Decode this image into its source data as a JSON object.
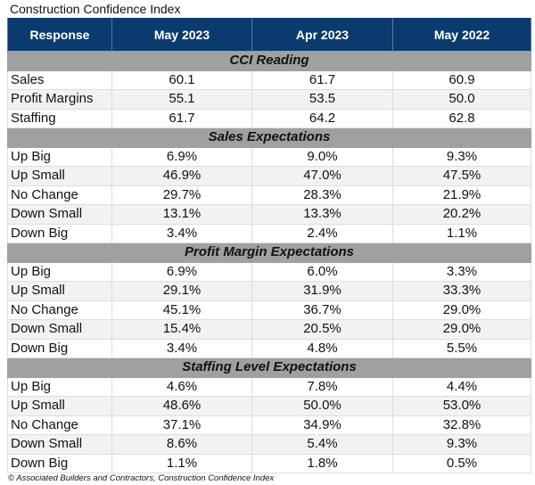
{
  "title": "Construction Confidence Index",
  "headers": [
    "Response",
    "May 2023",
    "Apr 2023",
    "May 2022"
  ],
  "colors": {
    "header_bg": "#0b3a6e",
    "section_bg": "#a0a0a0",
    "alt_row_bg": "#f2f2f2"
  },
  "sections": [
    {
      "title": "CCI Reading",
      "rows": [
        [
          "Sales",
          "60.1",
          "61.7",
          "60.9"
        ],
        [
          "Profit Margins",
          "55.1",
          "53.5",
          "50.0"
        ],
        [
          "Staffing",
          "61.7",
          "64.2",
          "62.8"
        ]
      ]
    },
    {
      "title": "Sales Expectations",
      "rows": [
        [
          "Up Big",
          "6.9%",
          "9.0%",
          "9.3%"
        ],
        [
          "Up Small",
          "46.9%",
          "47.0%",
          "47.5%"
        ],
        [
          "No Change",
          "29.7%",
          "28.3%",
          "21.9%"
        ],
        [
          "Down Small",
          "13.1%",
          "13.3%",
          "20.2%"
        ],
        [
          "Down Big",
          "3.4%",
          "2.4%",
          "1.1%"
        ]
      ]
    },
    {
      "title": "Profit Margin Expectations",
      "rows": [
        [
          "Up Big",
          "6.9%",
          "6.0%",
          "3.3%"
        ],
        [
          "Up Small",
          "29.1%",
          "31.9%",
          "33.3%"
        ],
        [
          "No Change",
          "45.1%",
          "36.7%",
          "29.0%"
        ],
        [
          "Down Small",
          "15.4%",
          "20.5%",
          "29.0%"
        ],
        [
          "Down Big",
          "3.4%",
          "4.8%",
          "5.5%"
        ]
      ]
    },
    {
      "title": "Staffing Level Expectations",
      "rows": [
        [
          "Up Big",
          "4.6%",
          "7.8%",
          "4.4%"
        ],
        [
          "Up Small",
          "48.6%",
          "50.0%",
          "53.0%"
        ],
        [
          "No Change",
          "37.1%",
          "34.9%",
          "32.8%"
        ],
        [
          "Down Small",
          "8.6%",
          "5.4%",
          "9.3%"
        ],
        [
          "Down Big",
          "1.1%",
          "1.8%",
          "0.5%"
        ]
      ]
    }
  ],
  "footer": "© Associated Builders and Contractors, Construction Confidence Index"
}
